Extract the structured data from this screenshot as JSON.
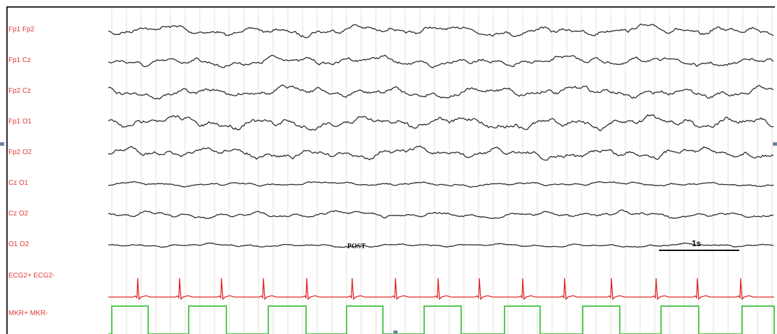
{
  "channels": [
    {
      "label": "Fp1 Fp2",
      "kind": "eeg",
      "amplitude": 1.0
    },
    {
      "label": "Fp1 Cz",
      "kind": "eeg",
      "amplitude": 1.0
    },
    {
      "label": "Fp2 Cz",
      "kind": "eeg",
      "amplitude": 1.05
    },
    {
      "label": "Fp1 O1",
      "kind": "eeg",
      "amplitude": 1.25
    },
    {
      "label": "Fp2 O2",
      "kind": "eeg",
      "amplitude": 1.1
    },
    {
      "label": "Cz O1",
      "kind": "eeg",
      "amplitude": 0.45
    },
    {
      "label": "Cz O2",
      "kind": "eeg",
      "amplitude": 0.65
    },
    {
      "label": "O1 O2",
      "kind": "eeg",
      "amplitude": 0.35
    },
    {
      "label": "ECG2+ ECG2-",
      "kind": "ecg"
    },
    {
      "label": "MKR+ MKR-",
      "kind": "marker"
    }
  ],
  "annotation": "POST",
  "scale_bar": {
    "label": "1s",
    "duration_s": 1
  },
  "colors": {
    "channel_label": "#e23a3a",
    "eeg_trace": "#2b2b2b",
    "ecg_trace": "#e02828",
    "marker_trace": "#52c852",
    "grid_line": "#e2e2d6",
    "frame": "#2a2a2a",
    "edge_mark": "#6d84a8"
  }
}
